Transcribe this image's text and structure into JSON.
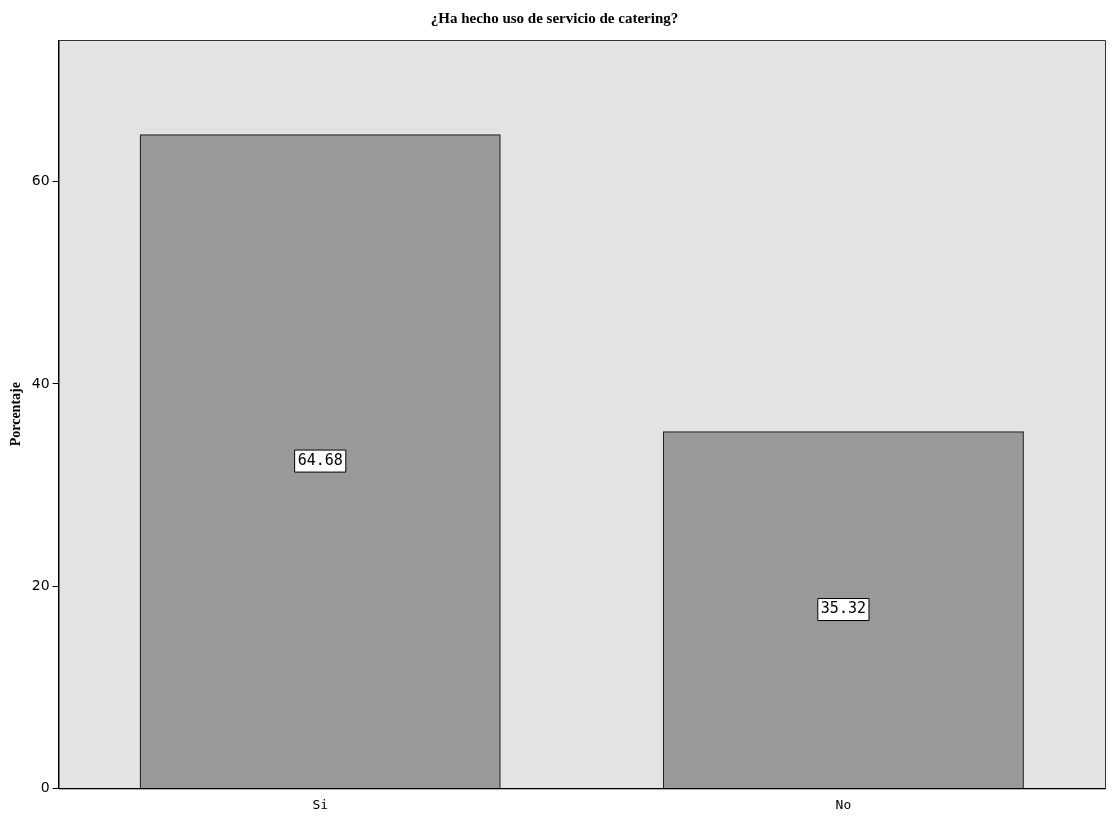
{
  "chart_data": {
    "type": "bar",
    "title": "¿Ha hecho uso de servicio de catering?",
    "ylabel": "Porcentaje",
    "categories": [
      "Si",
      "No"
    ],
    "values": [
      64.68,
      35.32
    ],
    "color": "#999999",
    "ylim": [
      0,
      74
    ],
    "yticks": [
      0,
      20,
      40,
      60
    ],
    "grid": false,
    "legend": false,
    "data_labels": true
  }
}
